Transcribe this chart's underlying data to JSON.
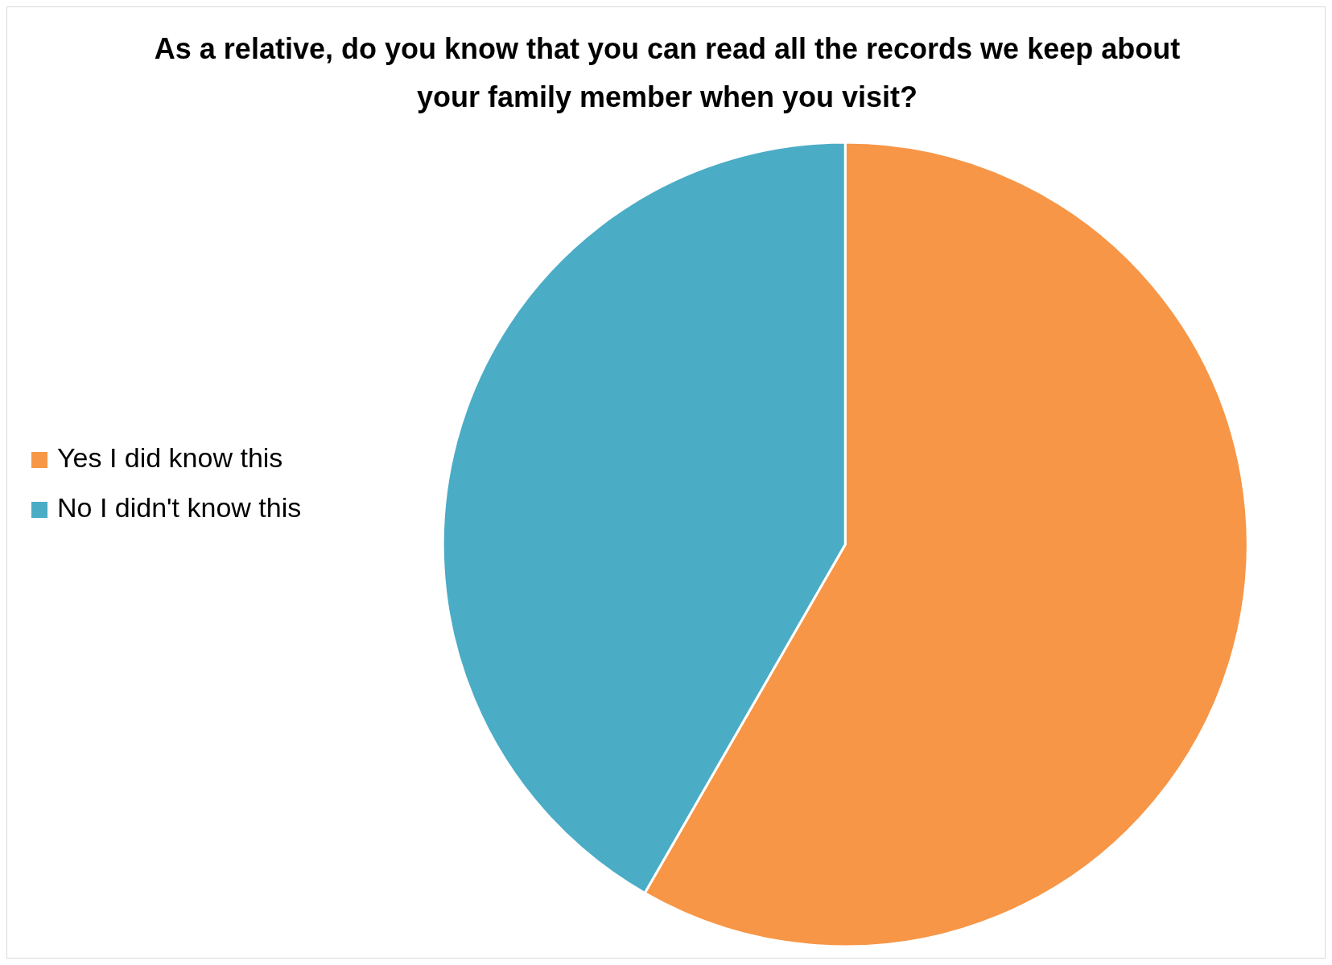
{
  "chart_data": {
    "type": "pie",
    "title": "As a relative, do you know that you can read all the records we keep about your family member when you visit?",
    "categories": [
      "Yes I did know this",
      "No I didn't know this"
    ],
    "values": [
      58.3,
      41.7
    ],
    "colors": [
      "#f79646",
      "#4bacc6"
    ],
    "legend": "left"
  }
}
